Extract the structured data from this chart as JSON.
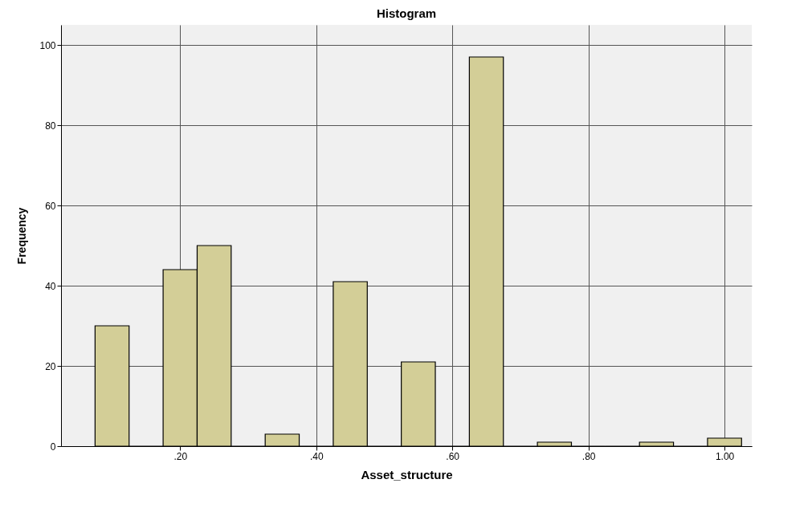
{
  "chart_data": {
    "type": "histogram",
    "title": "Histogram",
    "xlabel": "Asset_structure",
    "ylabel": "Frequency",
    "bins": [
      0.075,
      0.125,
      0.175,
      0.225,
      0.275,
      0.325,
      0.375,
      0.425,
      0.475,
      0.525,
      0.575,
      0.625,
      0.675,
      0.725,
      0.775,
      0.825,
      0.875,
      0.925,
      0.975,
      1.025
    ],
    "values": [
      30,
      0,
      44,
      50,
      0,
      3,
      0,
      41,
      0,
      21,
      0,
      97,
      0,
      1,
      0,
      0,
      1,
      0,
      2
    ],
    "color": "#d3ce97",
    "xlim": [
      0.025,
      1.04
    ],
    "ylim": [
      0,
      105
    ],
    "xticks": [
      {
        "value": 0.2,
        "label": ".20"
      },
      {
        "value": 0.4,
        "label": ".40"
      },
      {
        "value": 0.6,
        "label": ".60"
      },
      {
        "value": 0.8,
        "label": ".80"
      },
      {
        "value": 1.0,
        "label": "1.00"
      }
    ],
    "yticks": [
      0,
      20,
      40,
      60,
      80,
      100
    ],
    "grid": true
  }
}
